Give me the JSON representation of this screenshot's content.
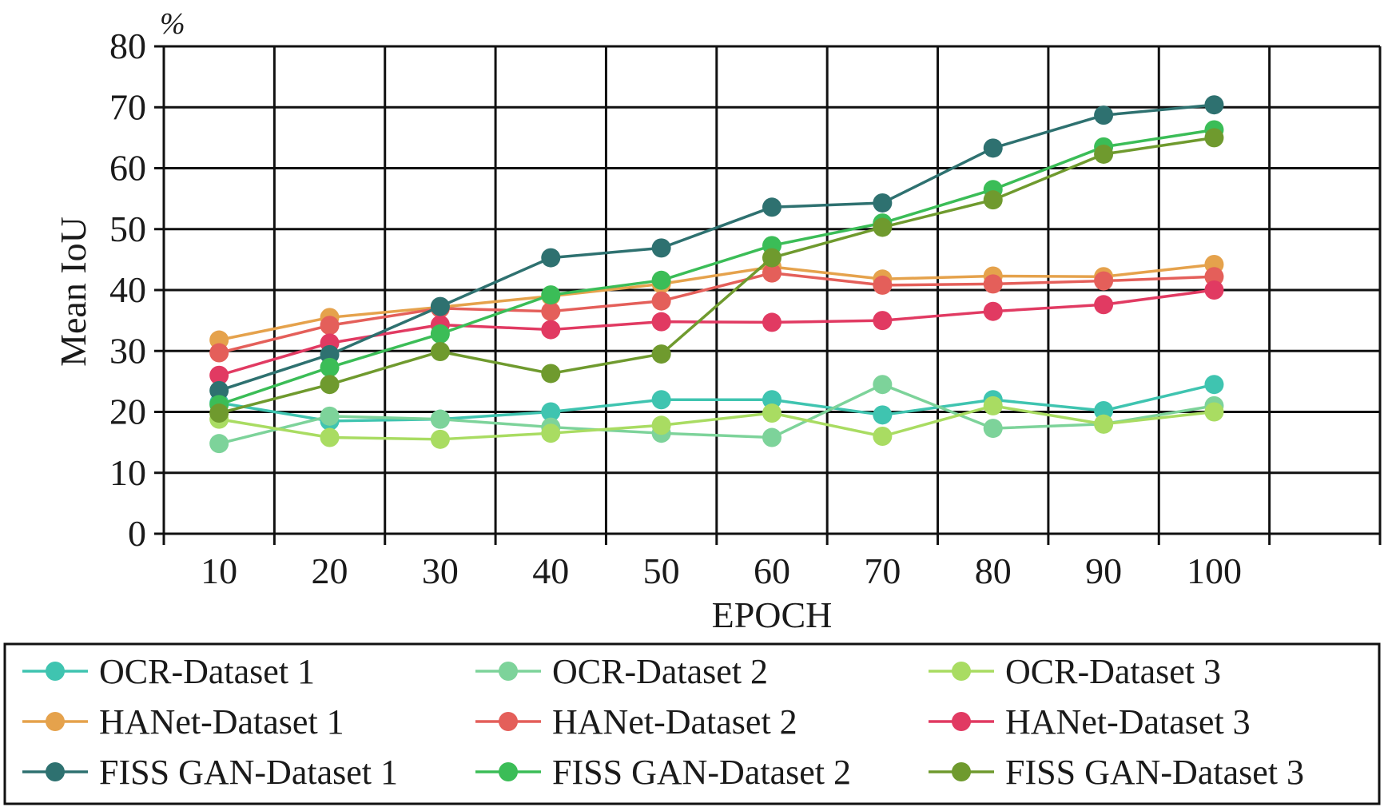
{
  "chart_data": {
    "type": "line",
    "title": "",
    "xlabel": "EPOCH",
    "ylabel": "Mean IoU",
    "unit_label": "%",
    "x": [
      10,
      20,
      30,
      40,
      50,
      60,
      70,
      80,
      90,
      100
    ],
    "x_tick_labels": [
      "10",
      "20",
      "30",
      "40",
      "50",
      "60",
      "70",
      "80",
      "90",
      "100"
    ],
    "ylim": [
      0,
      80
    ],
    "y_ticks": [
      0,
      10,
      20,
      30,
      40,
      50,
      60,
      70,
      80
    ],
    "y_tick_labels": [
      "0",
      "10",
      "20",
      "30",
      "40",
      "50",
      "60",
      "70",
      "80"
    ],
    "grid": true,
    "legend_position": "bottom",
    "series": [
      {
        "name": "OCR-Dataset 1",
        "color": "#3fc4b0",
        "values": [
          21.5,
          18.5,
          18.8,
          20.0,
          22.0,
          22.0,
          19.5,
          22.0,
          20.2,
          24.5
        ]
      },
      {
        "name": "OCR-Dataset 2",
        "color": "#7dd39a",
        "values": [
          14.8,
          19.3,
          18.8,
          17.5,
          16.5,
          15.8,
          24.5,
          17.3,
          18.0,
          21.0
        ]
      },
      {
        "name": "OCR-Dataset 3",
        "color": "#a9dc62",
        "values": [
          18.8,
          15.8,
          15.5,
          16.5,
          17.8,
          19.8,
          16.0,
          21.0,
          18.0,
          20.0
        ]
      },
      {
        "name": "HANet-Dataset 1",
        "color": "#e5a24c",
        "values": [
          31.8,
          35.5,
          37.2,
          39.0,
          41.0,
          43.8,
          41.8,
          42.3,
          42.2,
          44.2
        ]
      },
      {
        "name": "HANet-Dataset 2",
        "color": "#e45f5a",
        "values": [
          29.7,
          34.2,
          37.0,
          36.5,
          38.2,
          42.8,
          40.8,
          41.0,
          41.5,
          42.2
        ]
      },
      {
        "name": "HANet-Dataset 3",
        "color": "#e13a62",
        "values": [
          26.0,
          31.3,
          34.3,
          33.5,
          34.8,
          34.7,
          35.0,
          36.5,
          37.6,
          40.0
        ]
      },
      {
        "name": "FISS GAN-Dataset 1",
        "color": "#2e7170",
        "values": [
          23.5,
          29.4,
          37.3,
          45.3,
          46.9,
          53.6,
          54.3,
          63.3,
          68.7,
          70.4
        ]
      },
      {
        "name": "FISS GAN-Dataset 2",
        "color": "#3bbd57",
        "values": [
          21.2,
          27.3,
          32.8,
          39.2,
          41.6,
          47.3,
          51.0,
          56.5,
          63.5,
          66.3
        ]
      },
      {
        "name": "FISS GAN-Dataset 3",
        "color": "#6f9a2e",
        "values": [
          19.8,
          24.5,
          29.9,
          26.3,
          29.5,
          45.3,
          50.3,
          54.8,
          62.3,
          65.0
        ]
      }
    ]
  }
}
